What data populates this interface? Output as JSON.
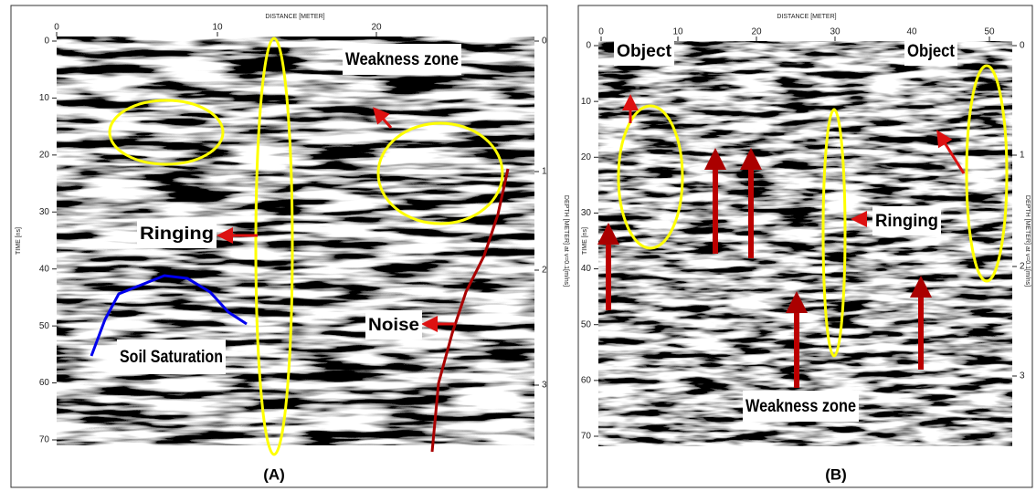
{
  "panels": [
    {
      "x_axis_title": "DISTANCE [METER]",
      "y_axis_title": "TIME [ns]",
      "y2_axis_title": "DEPTH [METER] at v=0.1[m/ns]",
      "x_ticks": [
        0,
        10,
        20
      ],
      "y_ticks": [
        0,
        10,
        20,
        30,
        40,
        50,
        60,
        70
      ],
      "y2_ticks": [
        0,
        1,
        2,
        3
      ],
      "annotations": [
        "Weakness zone",
        "Ringing",
        "Noise",
        "Soil Saturation"
      ],
      "caption": "(A)"
    },
    {
      "x_axis_title": "DISTANCE [METER]",
      "y_axis_title": "TIME [ns]",
      "y2_axis_title": "DEPTH [METER] at v=0.1[m/ns]",
      "x_ticks": [
        0,
        10,
        20,
        30,
        40,
        50
      ],
      "y_ticks": [
        0,
        10,
        20,
        30,
        40,
        50,
        60,
        70
      ],
      "y2_ticks": [
        0,
        1,
        2,
        3
      ],
      "annotations": [
        "Object",
        "Object",
        "Ringing",
        "Weakness zone"
      ],
      "caption": "(B)"
    }
  ]
}
